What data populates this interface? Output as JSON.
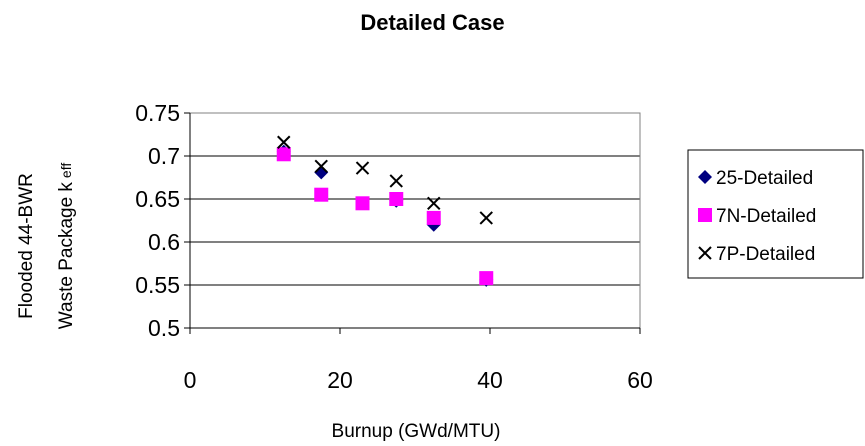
{
  "chart_data": {
    "type": "scatter",
    "title": "Detailed Case",
    "xlabel": "Burnup (GWd/MTU)",
    "ylabel_line1": "Flooded 44-BWR",
    "ylabel_line2_main": "Waste Package k",
    "ylabel_line2_sub": "eff",
    "xlim": [
      0,
      60
    ],
    "ylim": [
      0.5,
      0.75
    ],
    "x_ticks": [
      "0",
      "20",
      "40",
      "60"
    ],
    "y_ticks": [
      "0.5",
      "0.55",
      "0.6",
      "0.65",
      "0.7",
      "0.75"
    ],
    "grid": "horizontal",
    "legend_position": "right",
    "series": [
      {
        "name": "25-Detailed",
        "marker": "diamond",
        "color": "#000080",
        "points": [
          [
            12.5,
            0.705
          ],
          [
            17.5,
            0.681
          ],
          [
            27.5,
            0.648
          ],
          [
            32.5,
            0.62
          ],
          [
            39.5,
            0.556
          ]
        ]
      },
      {
        "name": "7N-Detailed",
        "marker": "square",
        "color": "#ff00ff",
        "points": [
          [
            12.5,
            0.702
          ],
          [
            17.5,
            0.655
          ],
          [
            23,
            0.645
          ],
          [
            27.5,
            0.65
          ],
          [
            32.5,
            0.628
          ],
          [
            39.5,
            0.558
          ]
        ]
      },
      {
        "name": "7P-Detailed",
        "marker": "x",
        "color": "#000000",
        "points": [
          [
            12.5,
            0.716
          ],
          [
            17.5,
            0.688
          ],
          [
            23,
            0.686
          ],
          [
            27.5,
            0.671
          ],
          [
            32.5,
            0.645
          ],
          [
            39.5,
            0.628
          ]
        ]
      }
    ]
  }
}
